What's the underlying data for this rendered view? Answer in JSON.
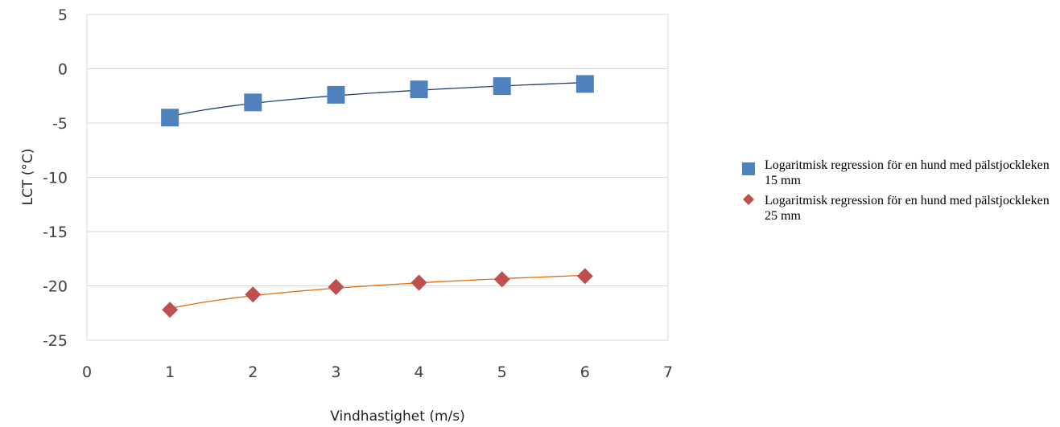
{
  "chart_data": {
    "type": "scatter",
    "xlabel": "Vindhastighet (m/s)",
    "ylabel": "LCT (°C)",
    "xlim": [
      0,
      7
    ],
    "ylim": [
      -25,
      5
    ],
    "x_ticks": [
      "0",
      "1",
      "2",
      "3",
      "4",
      "5",
      "6",
      "7"
    ],
    "y_ticks": [
      "5",
      "0",
      "-5",
      "-10",
      "-15",
      "-20",
      "-25"
    ],
    "grid": "horizontal",
    "legend_position": "right",
    "x": [
      1,
      2,
      3,
      4,
      5,
      6
    ],
    "series": [
      {
        "name": "Logaritmisk regression för en hund med pälstjockleken 15 mm",
        "marker": "square",
        "marker_color": "#4F81BD",
        "trend_color": "#1F3E75",
        "values": [
          -4.5,
          -3.1,
          -2.4,
          -1.9,
          -1.6,
          -1.4
        ]
      },
      {
        "name": "Logaritmisk regression för en hund med pälstjockleken 25 mm",
        "marker": "diamond",
        "marker_color": "#C0504D",
        "trend_color": "#E46C0A",
        "values": [
          -22.2,
          -20.8,
          -20.1,
          -19.7,
          -19.4,
          -19.1
        ]
      }
    ]
  }
}
